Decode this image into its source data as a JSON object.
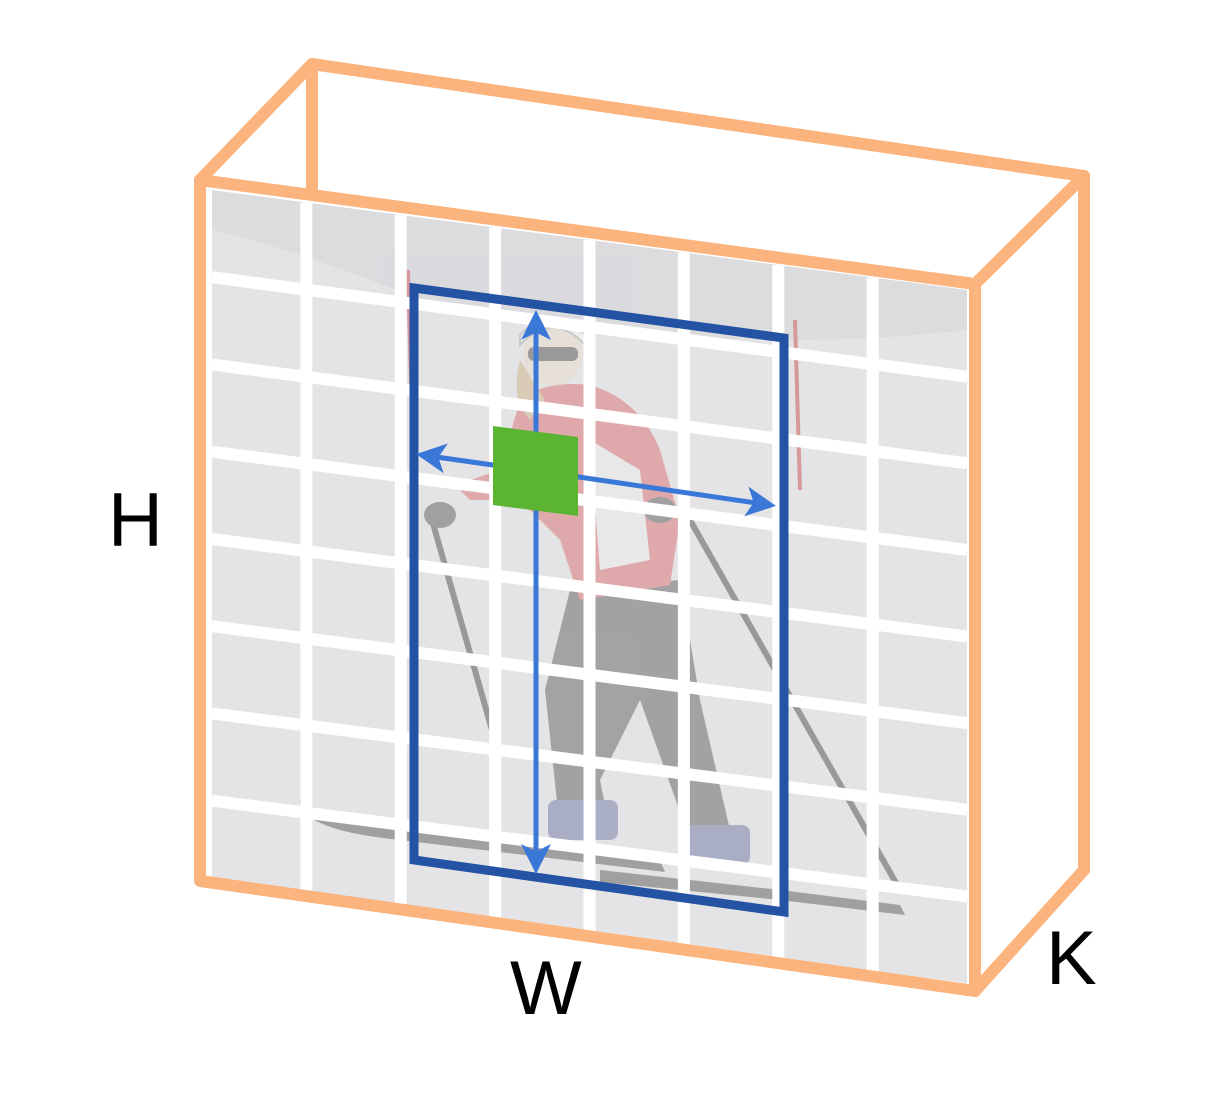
{
  "labels": {
    "height": "H",
    "width": "W",
    "depth": "K"
  },
  "grid": {
    "rows": 8,
    "cols": 8
  },
  "colors": {
    "box_edges": "#fbb47d",
    "grid_lines": "#ffffff",
    "photo_background": "#e4e4e6",
    "bounding_box": "#2453a3",
    "arrows": "#3a78d8",
    "center_cell": "#5bb532",
    "jacket": "#d94c4c",
    "pants": "#3a3a3a"
  },
  "image_content": {
    "subject": "skier",
    "opacity": 0.38
  }
}
